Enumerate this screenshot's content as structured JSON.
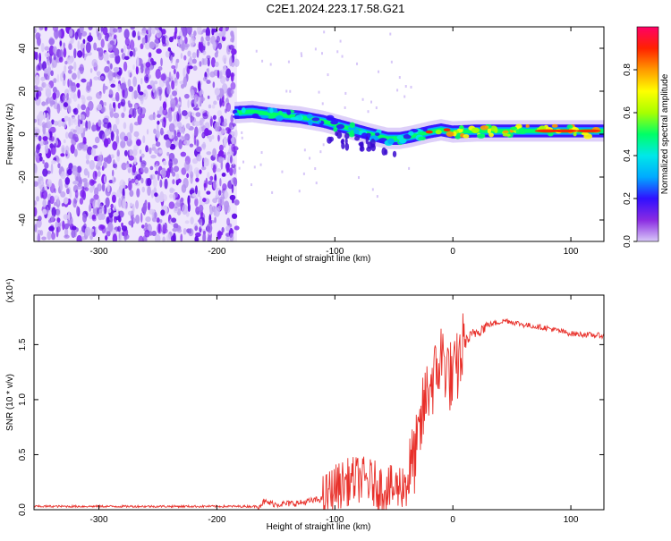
{
  "title": "C2E1.2024.223.17.58.G21",
  "colors": {
    "snr_line": "#e8302a",
    "background": "#ffffff",
    "axis": "#000000",
    "noise": "#7a1cf0",
    "colormap": [
      "#d8c8f8",
      "#8a2be2",
      "#3010ff",
      "#00aaff",
      "#00e8e8",
      "#00ff66",
      "#a8ff00",
      "#ffff00",
      "#ff9900",
      "#ff2200",
      "#ff0066"
    ]
  },
  "chart_data": [
    {
      "type": "heatmap",
      "name": "spectrogram",
      "xlabel": "Height of straight line (km)",
      "ylabel": "Frequency (Hz)",
      "xlim": [
        -355,
        128
      ],
      "ylim": [
        -50,
        50
      ],
      "xticks": [
        -300,
        -200,
        -100,
        0,
        100
      ],
      "xtick_labels": [
        "-300",
        "-200",
        "-100",
        "0",
        "100"
      ],
      "yticks": [
        -40,
        -20,
        0,
        20,
        40
      ],
      "ytick_labels": [
        "-40",
        "-20",
        "0",
        "20",
        "40"
      ],
      "noise_region": [
        -355,
        -183
      ],
      "ridge": {
        "x": [
          -185,
          -170,
          -150,
          -130,
          -110,
          -90,
          -70,
          -55,
          -45,
          -35,
          -20,
          -10,
          0,
          20,
          60,
          100,
          128
        ],
        "y": [
          10,
          10.5,
          9,
          8,
          6,
          3,
          0,
          -2,
          -2,
          -1,
          1,
          2,
          1,
          1.5,
          1.5,
          1.5,
          1.5
        ]
      },
      "colorbar": {
        "label": "Normalized spectral amplitude",
        "range": [
          0,
          1
        ],
        "ticks": [
          0.0,
          0.2,
          0.4,
          0.6,
          0.8
        ],
        "tick_labels": [
          "0.0",
          "0.2",
          "0.4",
          "0.6",
          "0.8"
        ]
      }
    },
    {
      "type": "line",
      "name": "snr",
      "xlabel": "Height of straight line (km)",
      "ylabel": "SNR (10 * v/v)",
      "y_multiplier": "(x10⁴)",
      "xlim": [
        -355,
        128
      ],
      "ylim": [
        0,
        1.95
      ],
      "xticks": [
        -300,
        -200,
        -100,
        0,
        100
      ],
      "xtick_labels": [
        "-300",
        "-200",
        "-100",
        "0",
        "100"
      ],
      "yticks": [
        0.0,
        0.5,
        1.0,
        1.5
      ],
      "ytick_labels": [
        "0.0",
        "0.5",
        "1.0",
        "1.5"
      ],
      "x": [
        -355,
        -300,
        -250,
        -200,
        -165,
        -160,
        -150,
        -130,
        -110,
        -100,
        -90,
        -80,
        -70,
        -60,
        -50,
        -40,
        -30,
        -25,
        -20,
        -15,
        -10,
        -5,
        0,
        10,
        20,
        30,
        45,
        60,
        80,
        100,
        128
      ],
      "y": [
        0.03,
        0.03,
        0.03,
        0.03,
        0.03,
        0.07,
        0.05,
        0.06,
        0.1,
        0.2,
        0.25,
        0.28,
        0.25,
        0.2,
        0.18,
        0.25,
        0.55,
        0.9,
        1.15,
        1.2,
        1.4,
        1.3,
        1.15,
        1.52,
        1.62,
        1.68,
        1.72,
        1.68,
        1.65,
        1.6,
        1.58
      ]
    }
  ]
}
